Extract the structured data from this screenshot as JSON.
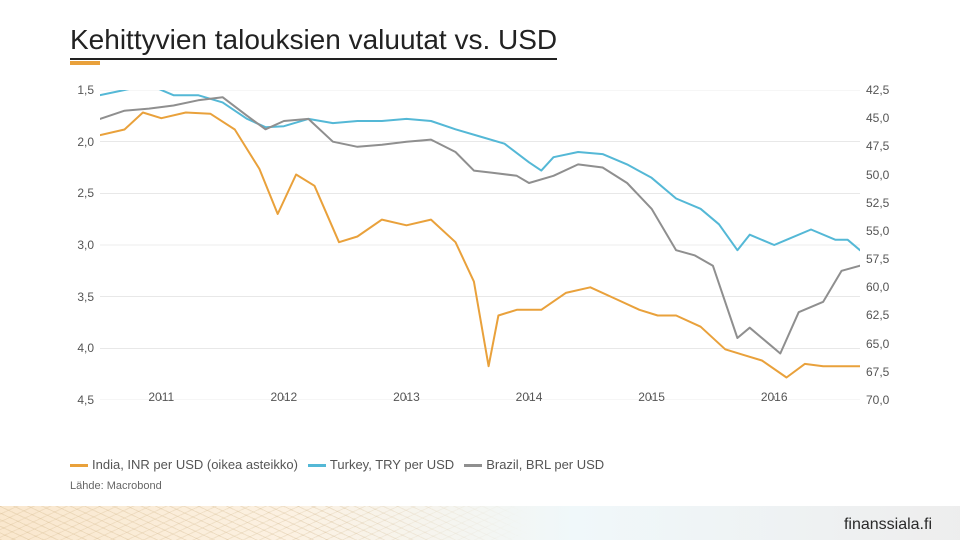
{
  "title": "Kehittyvien talouksien valuutat vs. USD",
  "footer_brand": "finanssiala.fi",
  "source_text": "Lähde: Macrobond",
  "chart": {
    "type": "line",
    "background_color": "#ffffff",
    "grid_color": "#d9d9d9",
    "x": {
      "range": [
        2010.5,
        2016.7
      ],
      "ticks": [
        2011,
        2012,
        2013,
        2014,
        2015,
        2016
      ]
    },
    "y_left": {
      "label_hint": "TRY/BRL per USD",
      "range": [
        4.5,
        1.5
      ],
      "ticks": [
        1.5,
        2.0,
        2.5,
        3.0,
        3.5,
        4.0,
        4.5
      ],
      "tick_labels": [
        "1,5",
        "2,0",
        "2,5",
        "3,0",
        "3,5",
        "4,0",
        "4,5"
      ]
    },
    "y_right": {
      "label_hint": "INR per USD",
      "range": [
        70.0,
        42.5
      ],
      "ticks": [
        42.5,
        45.0,
        47.5,
        50.0,
        52.5,
        55.0,
        57.5,
        60.0,
        62.5,
        65.0,
        67.5,
        70.0
      ],
      "tick_labels": [
        "42,5",
        "45,0",
        "47,5",
        "50,0",
        "52,5",
        "55,0",
        "57,5",
        "60,0",
        "62,5",
        "65,0",
        "67,5",
        "70,0"
      ]
    },
    "legend": [
      {
        "label": "India, INR per USD (oikea asteikko)",
        "color": "#e9a13b"
      },
      {
        "label": "Turkey, TRY per USD",
        "color": "#54b8d6"
      },
      {
        "label": "Brazil, BRL per USD",
        "color": "#8f8f8f"
      }
    ],
    "series": [
      {
        "name": "turkey",
        "axis": "left",
        "color": "#54b8d6",
        "line_width": 2,
        "points": [
          [
            2010.5,
            1.55
          ],
          [
            2010.7,
            1.5
          ],
          [
            2010.9,
            1.45
          ],
          [
            2011.1,
            1.55
          ],
          [
            2011.3,
            1.55
          ],
          [
            2011.5,
            1.62
          ],
          [
            2011.7,
            1.78
          ],
          [
            2011.85,
            1.86
          ],
          [
            2012.0,
            1.85
          ],
          [
            2012.2,
            1.78
          ],
          [
            2012.4,
            1.82
          ],
          [
            2012.6,
            1.8
          ],
          [
            2012.8,
            1.8
          ],
          [
            2013.0,
            1.78
          ],
          [
            2013.2,
            1.8
          ],
          [
            2013.4,
            1.88
          ],
          [
            2013.6,
            1.95
          ],
          [
            2013.8,
            2.02
          ],
          [
            2014.0,
            2.2
          ],
          [
            2014.1,
            2.28
          ],
          [
            2014.2,
            2.15
          ],
          [
            2014.4,
            2.1
          ],
          [
            2014.6,
            2.12
          ],
          [
            2014.8,
            2.22
          ],
          [
            2015.0,
            2.35
          ],
          [
            2015.2,
            2.55
          ],
          [
            2015.4,
            2.65
          ],
          [
            2015.55,
            2.8
          ],
          [
            2015.7,
            3.05
          ],
          [
            2015.8,
            2.9
          ],
          [
            2016.0,
            3.0
          ],
          [
            2016.1,
            2.95
          ],
          [
            2016.3,
            2.85
          ],
          [
            2016.5,
            2.95
          ],
          [
            2016.6,
            2.95
          ],
          [
            2016.7,
            3.05
          ]
        ]
      },
      {
        "name": "brazil",
        "axis": "left",
        "color": "#8f8f8f",
        "line_width": 2,
        "points": [
          [
            2010.5,
            1.78
          ],
          [
            2010.7,
            1.7
          ],
          [
            2010.9,
            1.68
          ],
          [
            2011.1,
            1.65
          ],
          [
            2011.3,
            1.6
          ],
          [
            2011.5,
            1.57
          ],
          [
            2011.7,
            1.75
          ],
          [
            2011.85,
            1.88
          ],
          [
            2012.0,
            1.8
          ],
          [
            2012.2,
            1.78
          ],
          [
            2012.4,
            2.0
          ],
          [
            2012.6,
            2.05
          ],
          [
            2012.8,
            2.03
          ],
          [
            2013.0,
            2.0
          ],
          [
            2013.2,
            1.98
          ],
          [
            2013.4,
            2.1
          ],
          [
            2013.55,
            2.28
          ],
          [
            2013.7,
            2.3
          ],
          [
            2013.9,
            2.33
          ],
          [
            2014.0,
            2.4
          ],
          [
            2014.2,
            2.33
          ],
          [
            2014.4,
            2.22
          ],
          [
            2014.6,
            2.25
          ],
          [
            2014.8,
            2.4
          ],
          [
            2015.0,
            2.65
          ],
          [
            2015.2,
            3.05
          ],
          [
            2015.35,
            3.1
          ],
          [
            2015.5,
            3.2
          ],
          [
            2015.7,
            3.9
          ],
          [
            2015.8,
            3.8
          ],
          [
            2015.95,
            3.95
          ],
          [
            2016.05,
            4.05
          ],
          [
            2016.2,
            3.65
          ],
          [
            2016.4,
            3.55
          ],
          [
            2016.55,
            3.25
          ],
          [
            2016.7,
            3.2
          ]
        ]
      },
      {
        "name": "india",
        "axis": "right",
        "color": "#e9a13b",
        "line_width": 2,
        "points": [
          [
            2010.5,
            46.5
          ],
          [
            2010.7,
            46.0
          ],
          [
            2010.85,
            44.5
          ],
          [
            2011.0,
            45.0
          ],
          [
            2011.2,
            44.5
          ],
          [
            2011.4,
            44.6
          ],
          [
            2011.6,
            46.0
          ],
          [
            2011.8,
            49.5
          ],
          [
            2011.95,
            53.5
          ],
          [
            2012.1,
            50.0
          ],
          [
            2012.25,
            51.0
          ],
          [
            2012.45,
            56.0
          ],
          [
            2012.6,
            55.5
          ],
          [
            2012.8,
            54.0
          ],
          [
            2013.0,
            54.5
          ],
          [
            2013.2,
            54.0
          ],
          [
            2013.4,
            56.0
          ],
          [
            2013.55,
            59.5
          ],
          [
            2013.67,
            67.0
          ],
          [
            2013.75,
            62.5
          ],
          [
            2013.9,
            62.0
          ],
          [
            2014.1,
            62.0
          ],
          [
            2014.3,
            60.5
          ],
          [
            2014.5,
            60.0
          ],
          [
            2014.7,
            61.0
          ],
          [
            2014.9,
            62.0
          ],
          [
            2015.05,
            62.5
          ],
          [
            2015.2,
            62.5
          ],
          [
            2015.4,
            63.5
          ],
          [
            2015.6,
            65.5
          ],
          [
            2015.75,
            66.0
          ],
          [
            2015.9,
            66.5
          ],
          [
            2016.1,
            68.0
          ],
          [
            2016.25,
            66.8
          ],
          [
            2016.4,
            67.0
          ],
          [
            2016.55,
            67.0
          ],
          [
            2016.7,
            67.0
          ]
        ]
      }
    ]
  }
}
